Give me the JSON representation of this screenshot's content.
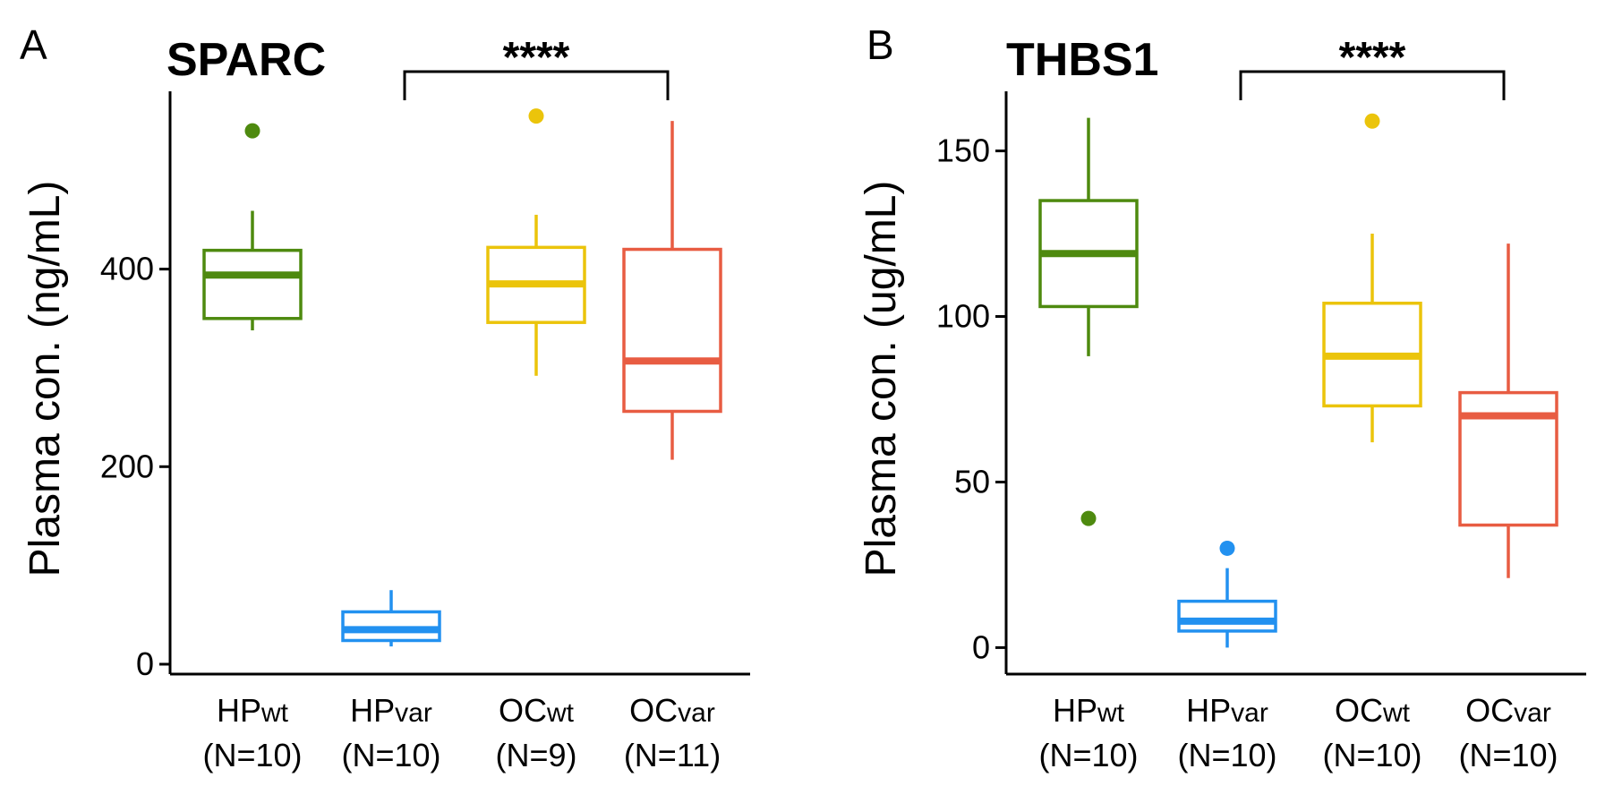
{
  "panels": [
    {
      "letter": "A",
      "title": "SPARC",
      "ylabel": "Plasma con. (ng/mL)",
      "significance": "****",
      "categories": [
        {
          "base": "HP",
          "sub": "wt",
          "n": "(N=10)"
        },
        {
          "base": "HP",
          "sub": "var",
          "n": "(N=10)"
        },
        {
          "base": "OC",
          "sub": "wt",
          "n": "(N=9)"
        },
        {
          "base": "OC",
          "sub": "var",
          "n": "(N=11)"
        }
      ],
      "yticks": [
        0,
        200,
        400
      ],
      "ylim": [
        -10,
        580
      ]
    },
    {
      "letter": "B",
      "title": "THBS1",
      "ylabel": "Plasma con. (ug/mL)",
      "significance": "****",
      "categories": [
        {
          "base": "HP",
          "sub": "wt",
          "n": "(N=10)"
        },
        {
          "base": "HP",
          "sub": "var",
          "n": "(N=10)"
        },
        {
          "base": "OC",
          "sub": "wt",
          "n": "(N=10)"
        },
        {
          "base": "OC",
          "sub": "var",
          "n": "(N=10)"
        }
      ],
      "yticks": [
        0,
        50,
        100,
        150
      ],
      "ylim": [
        -8,
        168
      ]
    }
  ],
  "chart_data": [
    {
      "type": "box",
      "title": "SPARC",
      "ylabel": "Plasma con. (ng/mL)",
      "categories": [
        "HPwt",
        "HPvar",
        "OCwt",
        "OCvar"
      ],
      "series": [
        {
          "name": "HPwt",
          "color": "#4E8A0F",
          "whisker_low": 338,
          "q1": 350,
          "median": 394,
          "q3": 419,
          "whisker_high": 459,
          "outliers": [
            540
          ]
        },
        {
          "name": "HPvar",
          "color": "#2291F0",
          "whisker_low": 18,
          "q1": 24,
          "median": 35,
          "q3": 53,
          "whisker_high": 75,
          "outliers": []
        },
        {
          "name": "OCwt",
          "color": "#EBC40B",
          "whisker_low": 292,
          "q1": 346,
          "median": 385,
          "q3": 422,
          "whisker_high": 455,
          "outliers": [
            555
          ]
        },
        {
          "name": "OCvar",
          "color": "#E85C42",
          "whisker_low": 207,
          "q1": 256,
          "median": 307,
          "q3": 420,
          "whisker_high": 550,
          "outliers": []
        }
      ],
      "yticks": [
        0,
        200,
        400
      ],
      "significance": {
        "label": "****",
        "from": "HPvar",
        "to": "OCvar"
      }
    },
    {
      "type": "box",
      "title": "THBS1",
      "ylabel": "Plasma con. (ug/mL)",
      "categories": [
        "HPwt",
        "HPvar",
        "OCwt",
        "OCvar"
      ],
      "series": [
        {
          "name": "HPwt",
          "color": "#4E8A0F",
          "whisker_low": 88,
          "q1": 103,
          "median": 119,
          "q3": 135,
          "whisker_high": 160,
          "outliers": [
            39
          ]
        },
        {
          "name": "HPvar",
          "color": "#2291F0",
          "whisker_low": 0,
          "q1": 5,
          "median": 8,
          "q3": 14,
          "whisker_high": 24,
          "outliers": [
            30
          ]
        },
        {
          "name": "OCwt",
          "color": "#EBC40B",
          "whisker_low": 62,
          "q1": 73,
          "median": 88,
          "q3": 104,
          "whisker_high": 125,
          "outliers": [
            159
          ]
        },
        {
          "name": "OCvar",
          "color": "#E85C42",
          "whisker_low": 21,
          "q1": 37,
          "median": 70,
          "q3": 77,
          "whisker_high": 122,
          "outliers": []
        }
      ],
      "yticks": [
        0,
        50,
        100,
        150
      ],
      "significance": {
        "label": "****",
        "from": "HPvar",
        "to": "OCvar"
      }
    }
  ]
}
